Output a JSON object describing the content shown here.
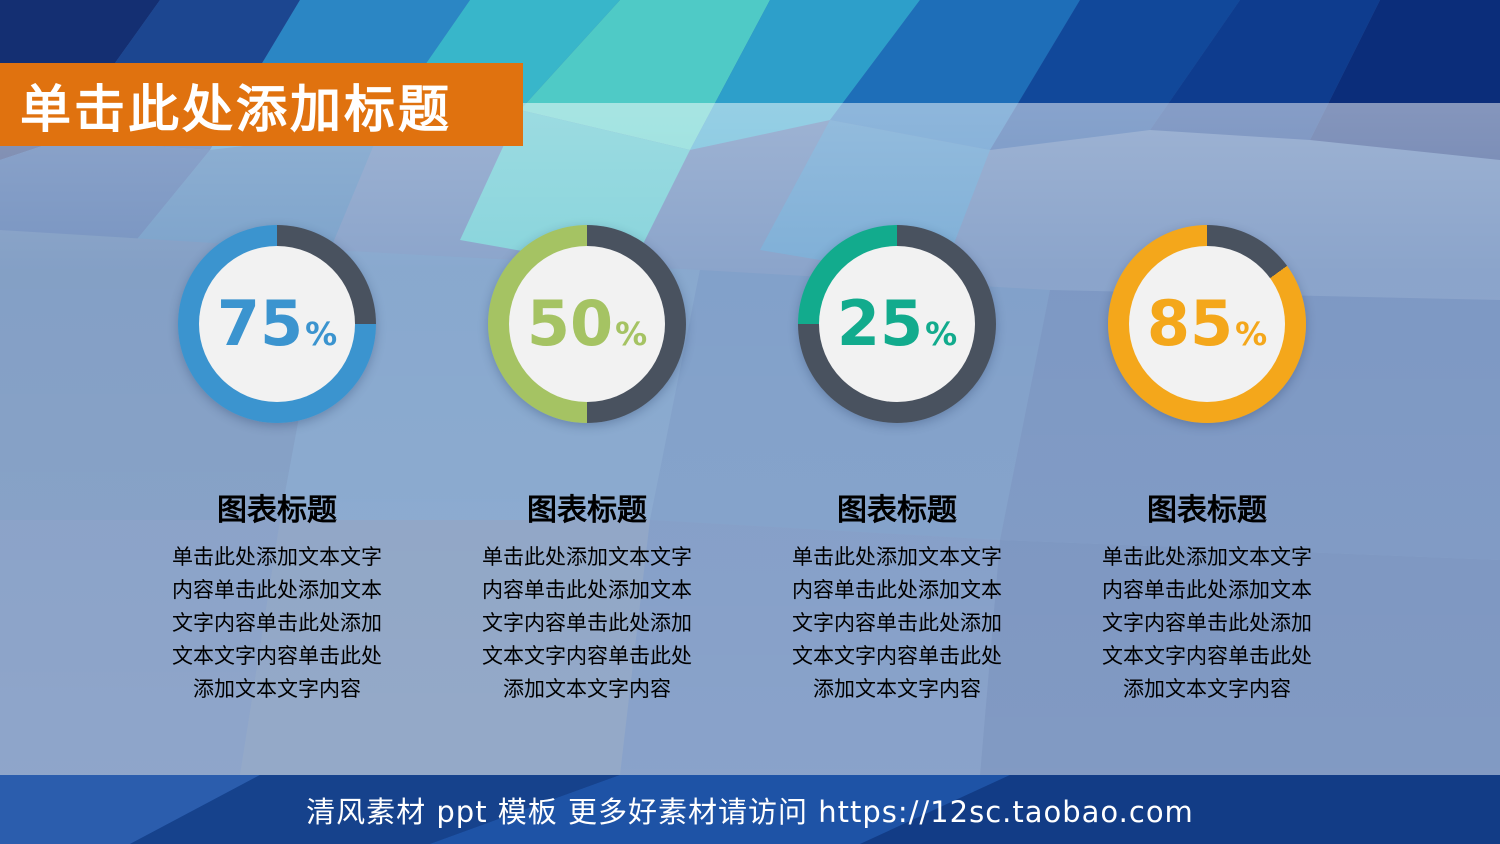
{
  "banner": {
    "title": "单击此处添加标题"
  },
  "charts": [
    {
      "percent": 75,
      "unit": "%",
      "ring_color": "#3b94cf",
      "track_color": "#49525f",
      "title": "图表标题",
      "body_lines": [
        "单击此处添加文本文字",
        "内容单击此处添加文本",
        "文字内容单击此处添加",
        "文本文字内容单击此处",
        "添加文本文字内容"
      ]
    },
    {
      "percent": 50,
      "unit": "%",
      "ring_color": "#a5c363",
      "track_color": "#49525f",
      "title": "图表标题",
      "body_lines": [
        "单击此处添加文本文字",
        "内容单击此处添加文本",
        "文字内容单击此处添加",
        "文本文字内容单击此处",
        "添加文本文字内容"
      ]
    },
    {
      "percent": 25,
      "unit": "%",
      "ring_color": "#12ab8d",
      "track_color": "#49525f",
      "title": "图表标题",
      "body_lines": [
        "单击此处添加文本文字",
        "内容单击此处添加文本",
        "文字内容单击此处添加",
        "文本文字内容单击此处",
        "添加文本文字内容"
      ]
    },
    {
      "percent": 85,
      "unit": "%",
      "ring_color": "#f4a71b",
      "track_color": "#49525f",
      "title": "图表标题",
      "body_lines": [
        "单击此处添加文本文字",
        "内容单击此处添加文本",
        "文字内容单击此处添加",
        "文本文字内容单击此处",
        "添加文本文字内容"
      ]
    }
  ],
  "footer": {
    "text": "清风素材  ppt 模板 更多好素材请访问  https://12sc.taobao.com"
  },
  "colors": {
    "banner_bg": "#e0720f",
    "footer_bar": "#1b4e9e",
    "ring_track": "#49525f",
    "donut_center": "#f2f2f2",
    "blue_ring": "#3b94cf",
    "green_ring": "#a5c363",
    "teal_ring": "#12ab8d",
    "yellow_ring": "#f4a71b"
  },
  "chart_data": {
    "type": "pie",
    "variant": "donut-gauge",
    "start_angle": "top",
    "fill_direction": "counterclockwise",
    "track_color": "#49525f",
    "series": [
      {
        "name": "图表标题",
        "value": 75,
        "unit": "%",
        "color": "#3b94cf"
      },
      {
        "name": "图表标题",
        "value": 50,
        "unit": "%",
        "color": "#a5c363"
      },
      {
        "name": "图表标题",
        "value": 25,
        "unit": "%",
        "color": "#12ab8d"
      },
      {
        "name": "图表标题",
        "value": 85,
        "unit": "%",
        "color": "#f4a71b"
      }
    ]
  }
}
